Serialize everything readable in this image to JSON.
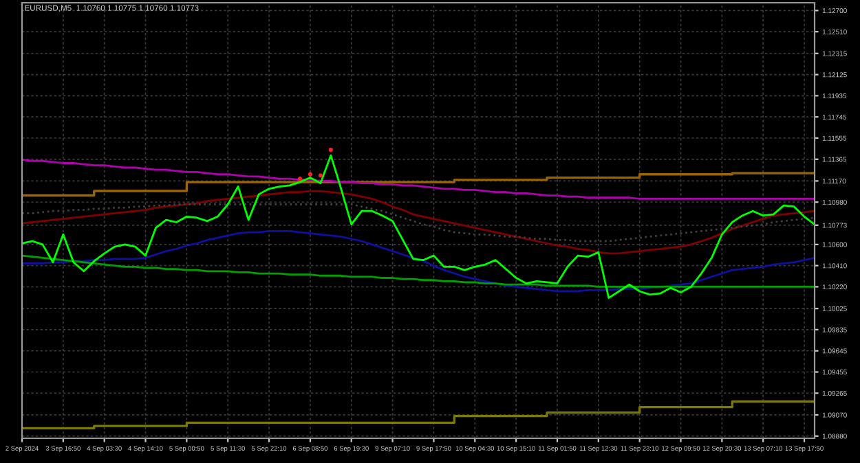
{
  "chart_data": {
    "type": "line",
    "title": "EURUSD,M5  1.10760 1.10775 1.10760 1.10773",
    "grid": true,
    "ylim": [
      1.0886,
      1.1277
    ],
    "categories": [
      "2 Sep 2024",
      null,
      null,
      null,
      "3 Sep 16:50",
      null,
      null,
      null,
      "4 Sep 03:30",
      null,
      null,
      null,
      "4 Sep 14:10",
      null,
      null,
      null,
      "5 Sep 00:50",
      null,
      null,
      null,
      "5 Sep 11:30",
      null,
      null,
      null,
      "5 Sep 22:10",
      null,
      null,
      null,
      "6 Sep 08:50",
      null,
      null,
      null,
      "6 Sep 19:30",
      null,
      null,
      null,
      "9 Sep 07:10",
      null,
      null,
      null,
      "9 Sep 17:50",
      null,
      null,
      null,
      "10 Sep 04:30",
      null,
      null,
      null,
      "10 Sep 15:10",
      null,
      null,
      null,
      "11 Sep 01:50",
      null,
      null,
      null,
      "11 Sep 12:30",
      null,
      null,
      null,
      "11 Sep 23:10",
      null,
      null,
      null,
      "12 Sep 09:50",
      null,
      null,
      null,
      "12 Sep 20:30",
      null,
      null,
      null,
      "13 Sep 07:10",
      null,
      null,
      null,
      "13 Sep 17:50",
      null
    ],
    "yticks": [
      {
        "value": 1.127,
        "label": "1.12700"
      },
      {
        "value": 1.1251,
        "label": "1.12510"
      },
      {
        "value": 1.12315,
        "label": "1.12315"
      },
      {
        "value": 1.12125,
        "label": "1.12125"
      },
      {
        "value": 1.11935,
        "label": "1.11935"
      },
      {
        "value": 1.11745,
        "label": "1.11745"
      },
      {
        "value": 1.11555,
        "label": "1.11555"
      },
      {
        "value": 1.11365,
        "label": "1.11365"
      },
      {
        "value": 1.1117,
        "label": "1.11170"
      },
      {
        "value": 1.1098,
        "label": "1.10980"
      },
      {
        "value": 1.10773,
        "label": "1.10773"
      },
      {
        "value": 1.106,
        "label": "1.10600"
      },
      {
        "value": 1.1041,
        "label": "1.10410"
      },
      {
        "value": 1.1022,
        "label": "1.10220"
      },
      {
        "value": 1.10025,
        "label": "1.10025"
      },
      {
        "value": 1.09835,
        "label": "1.09835"
      },
      {
        "value": 1.09645,
        "label": "1.09645"
      },
      {
        "value": 1.09455,
        "label": "1.09455"
      },
      {
        "value": 1.09265,
        "label": "1.09265"
      },
      {
        "value": 1.0907,
        "label": "1.09070"
      },
      {
        "value": 1.0888,
        "label": "1.08880"
      }
    ],
    "series": [
      {
        "type": "step",
        "color": "#9a6408",
        "values": [
          1.1104,
          1.1104,
          1.1104,
          1.1104,
          1.1104,
          1.1104,
          1.1104,
          1.1108,
          1.1108,
          1.1108,
          1.1108,
          1.1108,
          1.1108,
          1.1108,
          1.1108,
          1.1108,
          1.1116,
          1.1116,
          1.1116,
          1.1116,
          1.1116,
          1.1116,
          1.1116,
          1.1116,
          1.1116,
          1.1116,
          1.1116,
          1.1116,
          1.1116,
          1.1116,
          1.1116,
          1.1116,
          1.1116,
          1.1116,
          1.1116,
          1.1116,
          1.1116,
          1.1116,
          1.1116,
          1.1116,
          1.1116,
          1.1116,
          1.1118,
          1.1118,
          1.1118,
          1.1118,
          1.1118,
          1.1118,
          1.1118,
          1.1118,
          1.1118,
          1.112,
          1.112,
          1.112,
          1.112,
          1.112,
          1.112,
          1.112,
          1.112,
          1.112,
          1.1123,
          1.1123,
          1.1123,
          1.1123,
          1.1123,
          1.1123,
          1.1123,
          1.1123,
          1.1123,
          1.1124,
          1.1124,
          1.1124,
          1.1124,
          1.1124,
          1.1124,
          1.1124,
          1.1124,
          1.1124
        ]
      },
      {
        "type": "step",
        "color": "#7a7a00",
        "values": [
          1.0895,
          1.0895,
          1.0895,
          1.0895,
          1.0895,
          1.0895,
          1.0895,
          1.0897,
          1.0897,
          1.0897,
          1.0897,
          1.0897,
          1.0897,
          1.0897,
          1.0897,
          1.0897,
          1.09,
          1.09,
          1.09,
          1.09,
          1.09,
          1.09,
          1.09,
          1.09,
          1.09,
          1.09,
          1.09,
          1.09,
          1.09,
          1.09,
          1.09,
          1.09,
          1.09,
          1.09,
          1.09,
          1.09,
          1.09,
          1.09,
          1.09,
          1.09,
          1.09,
          1.09,
          1.0906,
          1.0906,
          1.0906,
          1.0906,
          1.0906,
          1.0906,
          1.0906,
          1.0906,
          1.0906,
          1.0909,
          1.0909,
          1.0909,
          1.0909,
          1.0909,
          1.0909,
          1.0909,
          1.0909,
          1.0909,
          1.0914,
          1.0914,
          1.0914,
          1.0914,
          1.0914,
          1.0914,
          1.0914,
          1.0914,
          1.0914,
          1.0919,
          1.0919,
          1.0919,
          1.0919,
          1.0919,
          1.0919,
          1.0919,
          1.0919,
          1.0919
        ]
      },
      {
        "color": "#b000b0",
        "values": [
          1.1136,
          1.1135,
          1.1135,
          1.1134,
          1.1133,
          1.1133,
          1.1132,
          1.1131,
          1.1131,
          1.113,
          1.1129,
          1.1129,
          1.1128,
          1.1127,
          1.1127,
          1.1126,
          1.1125,
          1.1125,
          1.1124,
          1.1123,
          1.1123,
          1.1122,
          1.1121,
          1.1121,
          1.112,
          1.1119,
          1.1119,
          1.1118,
          1.1118,
          1.1117,
          1.1117,
          1.1116,
          1.1116,
          1.1115,
          1.1115,
          1.1114,
          1.1114,
          1.1113,
          1.1113,
          1.1112,
          1.1111,
          1.111,
          1.111,
          1.1109,
          1.1109,
          1.1108,
          1.1107,
          1.1107,
          1.1106,
          1.1106,
          1.1105,
          1.1104,
          1.1104,
          1.1103,
          1.1103,
          1.1102,
          1.1102,
          1.1102,
          1.1102,
          1.1102,
          1.1101,
          1.1101,
          1.1101,
          1.1101,
          1.1101,
          1.1101,
          1.1101,
          1.1101,
          1.1101,
          1.1101,
          1.1101,
          1.1101,
          1.1101,
          1.1101,
          1.1101,
          1.1101,
          1.1101,
          1.1101
        ]
      },
      {
        "color": "#800000",
        "values": [
          1.1079,
          1.108,
          1.1081,
          1.1082,
          1.1083,
          1.1084,
          1.1085,
          1.1086,
          1.1087,
          1.1088,
          1.1089,
          1.109,
          1.1091,
          1.1093,
          1.1094,
          1.1095,
          1.1096,
          1.1097,
          1.1099,
          1.11,
          1.1101,
          1.1102,
          1.1103,
          1.1104,
          1.1105,
          1.1106,
          1.1107,
          1.1107,
          1.1108,
          1.1108,
          1.1107,
          1.1106,
          1.1105,
          1.1103,
          1.1101,
          1.1098,
          1.1094,
          1.1091,
          1.1087,
          1.1085,
          1.1083,
          1.1081,
          1.1079,
          1.1077,
          1.1075,
          1.1073,
          1.1071,
          1.1069,
          1.1067,
          1.1065,
          1.1063,
          1.1061,
          1.1059,
          1.1058,
          1.1056,
          1.1055,
          1.1053,
          1.1052,
          1.1052,
          1.1053,
          1.1054,
          1.1055,
          1.1056,
          1.1057,
          1.1058,
          1.106,
          1.1063,
          1.1066,
          1.107,
          1.1074,
          1.1077,
          1.108,
          1.1083,
          1.1086,
          1.1087,
          1.1088,
          1.1089,
          1.109
        ]
      },
      {
        "color": "#404040",
        "line_style": "dotted",
        "values": [
          1.1088,
          1.1088,
          1.1089,
          1.109,
          1.109,
          1.1091,
          1.1091,
          1.1092,
          1.1092,
          1.1093,
          1.1093,
          1.1094,
          1.1094,
          1.1095,
          1.1095,
          1.1096,
          1.1096,
          1.1096,
          1.1096,
          1.1096,
          1.1096,
          1.1096,
          1.1096,
          1.1096,
          1.1096,
          1.1096,
          1.1096,
          1.1096,
          1.1096,
          1.1096,
          1.1096,
          1.1096,
          1.1096,
          1.1094,
          1.1092,
          1.109,
          1.1087,
          1.1084,
          1.1081,
          1.1078,
          1.1076,
          1.1073,
          1.1071,
          1.107,
          1.1069,
          1.1069,
          1.1068,
          1.1067,
          1.1067,
          1.1066,
          1.1065,
          1.1065,
          1.1064,
          1.1064,
          1.1063,
          1.1063,
          1.1063,
          1.1063,
          1.1064,
          1.1065,
          1.1066,
          1.1067,
          1.1068,
          1.1069,
          1.107,
          1.1071,
          1.1072,
          1.1073,
          1.1074,
          1.1075,
          1.1076,
          1.1077,
          1.1078,
          1.108,
          1.1081,
          1.1082,
          1.1083,
          1.1084
        ]
      },
      {
        "color": "#1010a0",
        "values": [
          1.1043,
          1.1043,
          1.1043,
          1.1044,
          1.1044,
          1.1045,
          1.1045,
          1.1046,
          1.1046,
          1.1047,
          1.1047,
          1.1047,
          1.1048,
          1.1051,
          1.1054,
          1.1056,
          1.1059,
          1.1061,
          1.1064,
          1.1066,
          1.1068,
          1.107,
          1.1071,
          1.1071,
          1.1072,
          1.1072,
          1.1072,
          1.1071,
          1.107,
          1.1069,
          1.1068,
          1.1067,
          1.1065,
          1.1063,
          1.106,
          1.1057,
          1.1054,
          1.1051,
          1.1048,
          1.1045,
          1.1041,
          1.1037,
          1.1034,
          1.1031,
          1.1029,
          1.1027,
          1.1025,
          1.1023,
          1.1022,
          1.1021,
          1.102,
          1.1019,
          1.1018,
          1.1018,
          1.1018,
          1.1019,
          1.1019,
          1.1019,
          1.102,
          1.102,
          1.102,
          1.1021,
          1.1022,
          1.1023,
          1.1024,
          1.1025,
          1.1028,
          1.1031,
          1.1034,
          1.1037,
          1.1038,
          1.1039,
          1.104,
          1.1042,
          1.1043,
          1.1044,
          1.1046,
          1.1048
        ]
      },
      {
        "color": "#00a000",
        "values": [
          1.105,
          1.1049,
          1.1048,
          1.1047,
          1.1046,
          1.1045,
          1.1044,
          1.1043,
          1.1042,
          1.1041,
          1.104,
          1.104,
          1.1039,
          1.1039,
          1.1038,
          1.1038,
          1.1037,
          1.1037,
          1.1036,
          1.1036,
          1.1036,
          1.1035,
          1.1035,
          1.1034,
          1.1034,
          1.1034,
          1.1033,
          1.1033,
          1.1033,
          1.1032,
          1.1032,
          1.1032,
          1.1031,
          1.1031,
          1.1031,
          1.103,
          1.103,
          1.1029,
          1.1029,
          1.1028,
          1.1028,
          1.1027,
          1.1027,
          1.1026,
          1.1026,
          1.1025,
          1.1025,
          1.1024,
          1.1024,
          1.1024,
          1.1024,
          1.1023,
          1.1023,
          1.1023,
          1.1023,
          1.1023,
          1.1022,
          1.1022,
          1.1022,
          1.1022,
          1.1022,
          1.1022,
          1.1022,
          1.1022,
          1.1022,
          1.1022,
          1.1022,
          1.1022,
          1.1022,
          1.1022,
          1.1022,
          1.1022,
          1.1022,
          1.1022,
          1.1022,
          1.1022,
          1.1022,
          1.1022
        ]
      },
      {
        "color": "#00ff00",
        "values": [
          1.1061,
          1.1063,
          1.106,
          1.1044,
          1.1069,
          1.1044,
          1.1036,
          1.1045,
          1.1052,
          1.1058,
          1.106,
          1.1058,
          1.105,
          1.1075,
          1.1082,
          1.108,
          1.1085,
          1.1084,
          1.1081,
          1.1085,
          1.1096,
          1.1112,
          1.1082,
          1.1105,
          1.111,
          1.1112,
          1.1113,
          1.1116,
          1.112,
          1.1115,
          1.114,
          1.111,
          1.1078,
          1.109,
          1.109,
          1.1086,
          1.1081,
          1.1064,
          1.1047,
          1.1046,
          1.105,
          1.104,
          1.104,
          1.1037,
          1.104,
          1.1042,
          1.1046,
          1.1038,
          1.103,
          1.1025,
          1.1027,
          1.1026,
          1.1025,
          1.104,
          1.105,
          1.1049,
          1.1053,
          1.1012,
          1.1018,
          1.1024,
          1.1018,
          1.1015,
          1.1016,
          1.1021,
          1.1017,
          1.1022,
          1.1034,
          1.1048,
          1.1069,
          1.108,
          1.1086,
          1.109,
          1.1086,
          1.1087,
          1.1095,
          1.1094,
          1.1085,
          1.1078
        ]
      },
      {
        "type": "scatter",
        "color": "#ff2020",
        "marker": "circle",
        "values": [
          null,
          null,
          null,
          null,
          null,
          null,
          null,
          null,
          null,
          null,
          null,
          null,
          null,
          null,
          null,
          null,
          null,
          null,
          null,
          null,
          null,
          null,
          null,
          null,
          null,
          null,
          null,
          1.1119,
          1.1123,
          1.1122,
          1.1145,
          null,
          null,
          null,
          null,
          null,
          null,
          null,
          null,
          null,
          null,
          null,
          null,
          null,
          null,
          null,
          null,
          null,
          null,
          null,
          null,
          null,
          null,
          null,
          null,
          null,
          null,
          null,
          null,
          null,
          null,
          null,
          null,
          null,
          null,
          null,
          null,
          null,
          null,
          null,
          null,
          null,
          null,
          null,
          null,
          null,
          null,
          null
        ]
      }
    ]
  }
}
